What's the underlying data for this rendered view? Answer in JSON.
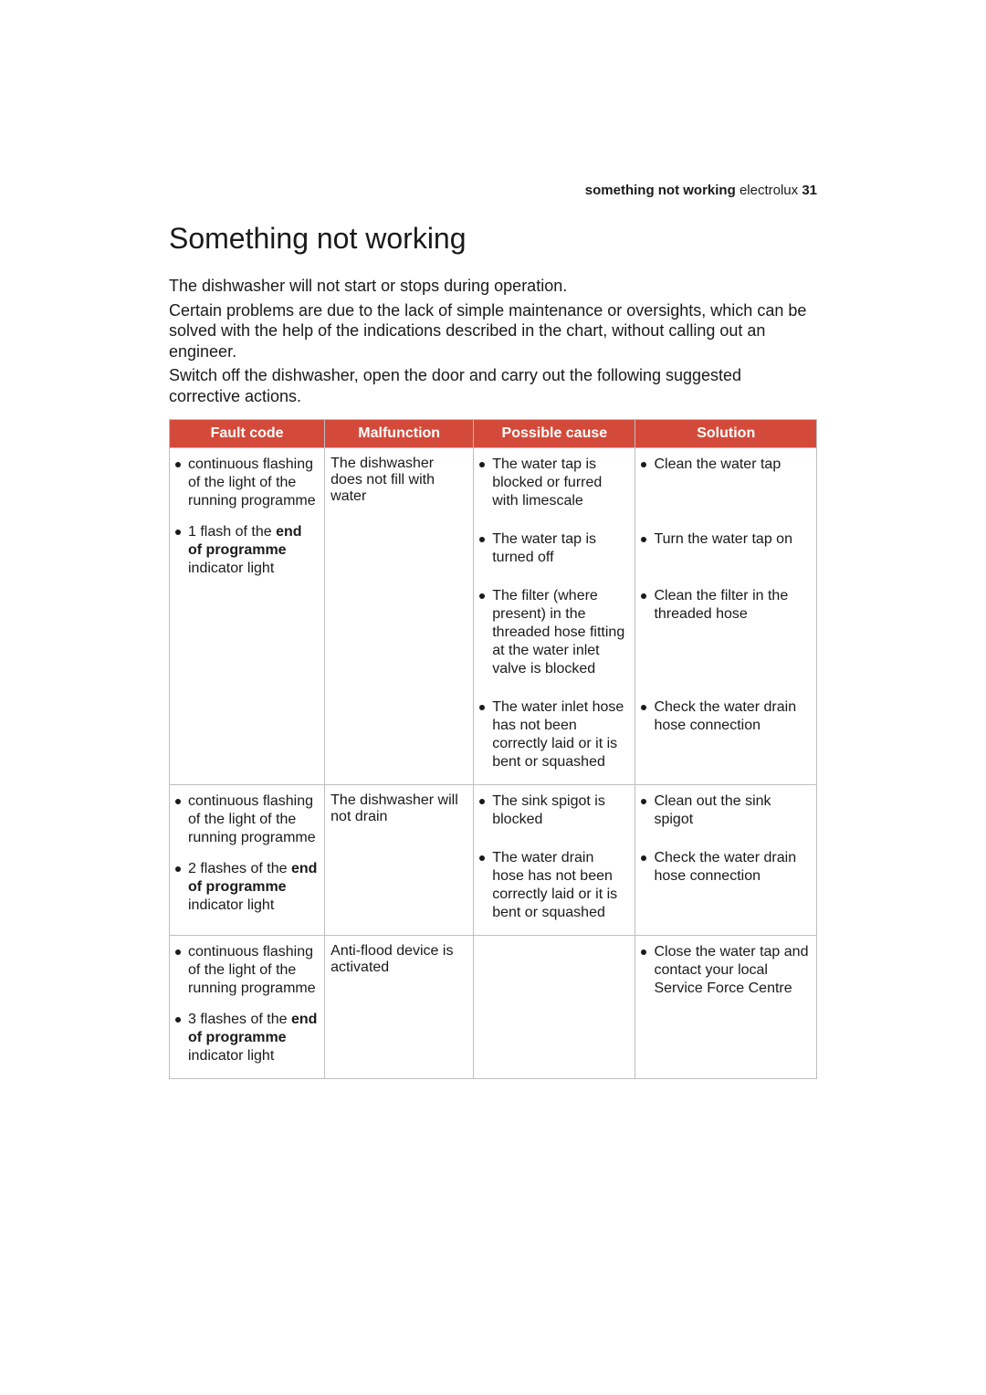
{
  "header": {
    "section": "something not working",
    "brand": "electrolux",
    "page_no": "31"
  },
  "title": "Something not working",
  "intro": {
    "p1": "The dishwasher will not start or stops during operation.",
    "p2": "Certain problems are due to the lack of simple maintenance or oversights, which can be solved with the help of the indications described in the chart, without calling out an engineer.",
    "p3": "Switch off the dishwasher, open the door and carry out the following suggested corrective actions."
  },
  "table": {
    "headers": {
      "fault": "Fault code",
      "malfunction": "Malfunction",
      "cause": "Possible cause",
      "solution": "Solution"
    },
    "row1": {
      "fault_a": "continuous flashing of the light of the running programme",
      "fault_b_pre": "1 flash of the ",
      "fault_b_bold": "end of programme",
      "fault_b_post": " indicator light",
      "malfunction": "The dishwasher does not fill with water",
      "causes": {
        "c1": "The water tap is blocked or furred with limescale",
        "c2": "The water tap is turned off",
        "c3": "The filter (where present) in the threaded hose fitting at the water inlet valve is blocked",
        "c4": "The water inlet hose has not been correctly laid or it is bent or squashed"
      },
      "solutions": {
        "s1": "Clean the water tap",
        "s2": "Turn the water tap on",
        "s3": "Clean the filter in the threaded hose",
        "s4": "Check the water drain hose connection"
      }
    },
    "row2": {
      "fault_a": "continuous flashing of the light of the running programme",
      "fault_b_pre": "2 flashes of the ",
      "fault_b_bold": "end of programme",
      "fault_b_post": " indicator light",
      "malfunction": "The dishwasher will not drain",
      "causes": {
        "c1": "The sink spigot is blocked",
        "c2": "The water drain hose has not been correctly laid or it is bent or squashed"
      },
      "solutions": {
        "s1": "Clean out the sink spigot",
        "s2": "Check the water drain hose connection"
      }
    },
    "row3": {
      "fault_a": "continuous flashing of the light of the running programme",
      "fault_b_pre": "3 flashes of the ",
      "fault_b_bold": "end of programme",
      "fault_b_post": " indicator light",
      "malfunction": "Anti-flood device is activated",
      "solutions": {
        "s1": "Close the water tap and contact your local Service Force Centre"
      }
    }
  }
}
